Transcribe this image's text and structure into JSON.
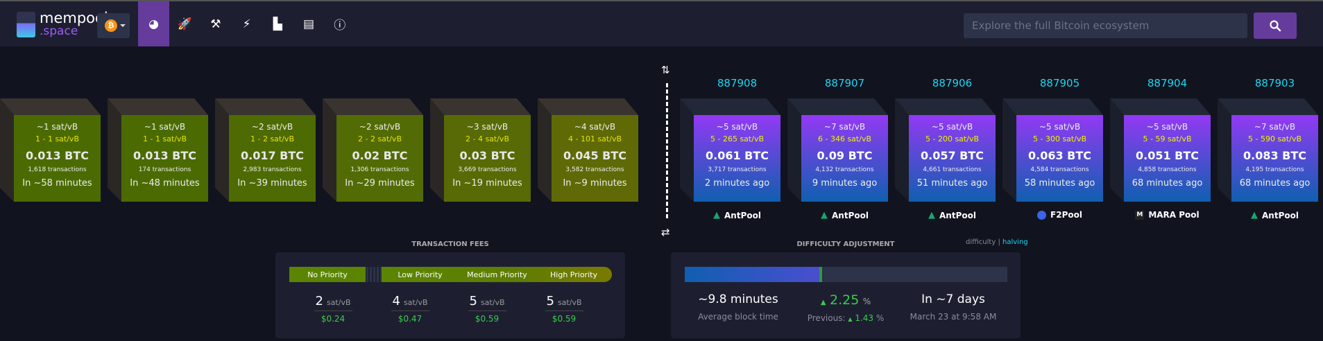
{
  "header": {
    "logo_line1": "mempool",
    "logo_line2": ".space",
    "chain_symbol": "₿",
    "search_placeholder": "Explore the full Bitcoin ecosystem",
    "nav": [
      {
        "icon": "dashboard-icon",
        "glyph": "◕",
        "active": true
      },
      {
        "icon": "rocket-icon",
        "glyph": "🚀"
      },
      {
        "icon": "hammer-icon",
        "glyph": "⚒"
      },
      {
        "icon": "lightning-icon",
        "glyph": "⚡"
      },
      {
        "icon": "chart-icon",
        "glyph": "▙"
      },
      {
        "icon": "book-icon",
        "glyph": "▤"
      },
      {
        "icon": "info-icon",
        "glyph": "ⓘ"
      }
    ]
  },
  "mempool_blocks": [
    {
      "median": "~1 sat/vB",
      "range": "1 - 1 sat/vB",
      "fees": "0.013 BTC",
      "txs": "1,618 transactions",
      "eta": "In ~58 minutes",
      "color": "#4b6b02"
    },
    {
      "median": "~1 sat/vB",
      "range": "1 - 1 sat/vB",
      "fees": "0.013 BTC",
      "txs": "174 transactions",
      "eta": "In ~48 minutes",
      "color": "#4b6b02"
    },
    {
      "median": "~2 sat/vB",
      "range": "1 - 2 sat/vB",
      "fees": "0.017 BTC",
      "txs": "2,983 transactions",
      "eta": "In ~39 minutes",
      "color": "#4e6a03"
    },
    {
      "median": "~2 sat/vB",
      "range": "2 - 2 sat/vB",
      "fees": "0.02 BTC",
      "txs": "1,306 transactions",
      "eta": "In ~29 minutes",
      "color": "#536b04"
    },
    {
      "median": "~3 sat/vB",
      "range": "2 - 4 sat/vB",
      "fees": "0.03 BTC",
      "txs": "3,669 transactions",
      "eta": "In ~19 minutes",
      "color": "#576a05"
    },
    {
      "median": "~4 sat/vB",
      "range": "4 - 101 sat/vB",
      "fees": "0.045 BTC",
      "txs": "3,582 transactions",
      "eta": "In ~9 minutes",
      "color": "#5f6a07"
    }
  ],
  "blocks": [
    {
      "height": "887908",
      "median": "~5 sat/vB",
      "range": "5 - 265 sat/vB",
      "fees": "0.061 BTC",
      "txs": "3,717 transactions",
      "age": "2 minutes ago",
      "pool": "AntPool",
      "pool_icon": "antpool"
    },
    {
      "height": "887907",
      "median": "~7 sat/vB",
      "range": "6 - 346 sat/vB",
      "fees": "0.09 BTC",
      "txs": "4,132 transactions",
      "age": "9 minutes ago",
      "pool": "AntPool",
      "pool_icon": "antpool"
    },
    {
      "height": "887906",
      "median": "~5 sat/vB",
      "range": "5 - 200 sat/vB",
      "fees": "0.057 BTC",
      "txs": "4,661 transactions",
      "age": "51 minutes ago",
      "pool": "AntPool",
      "pool_icon": "antpool"
    },
    {
      "height": "887905",
      "median": "~5 sat/vB",
      "range": "5 - 300 sat/vB",
      "fees": "0.063 BTC",
      "txs": "4,584 transactions",
      "age": "58 minutes ago",
      "pool": "F2Pool",
      "pool_icon": "f2pool"
    },
    {
      "height": "887904",
      "median": "~5 sat/vB",
      "range": "5 - 59 sat/vB",
      "fees": "0.051 BTC",
      "txs": "4,858 transactions",
      "age": "68 minutes ago",
      "pool": "MARA Pool",
      "pool_icon": "mara"
    },
    {
      "height": "887903",
      "median": "~7 sat/vB",
      "range": "5 - 590 sat/vB",
      "fees": "0.083 BTC",
      "txs": "4,195 transactions",
      "age": "68 minutes ago",
      "pool": "AntPool",
      "pool_icon": "antpool"
    }
  ],
  "fees": {
    "title": "TRANSACTION FEES",
    "labels": [
      "No Priority",
      "Low Priority",
      "Medium Priority",
      "High Priority"
    ],
    "values": [
      {
        "rate": "2",
        "unit": "sat/vB",
        "usd": "$0.24"
      },
      {
        "rate": "4",
        "unit": "sat/vB",
        "usd": "$0.47"
      },
      {
        "rate": "5",
        "unit": "sat/vB",
        "usd": "$0.59"
      },
      {
        "rate": "5",
        "unit": "sat/vB",
        "usd": "$0.59"
      }
    ]
  },
  "difficulty": {
    "title": "DIFFICULTY ADJUSTMENT",
    "toggle_difficulty": "difficulty",
    "toggle_sep": "|",
    "toggle_halving": "halving",
    "progress_percent": 42,
    "avg_time": "~9.8 minutes",
    "avg_label": "Average block time",
    "change": "2.25",
    "change_unit": "%",
    "previous_label": "Previous:",
    "previous": "1.43",
    "previous_unit": "%",
    "eta": "In ~7 days",
    "eta_date": "March 23 at 9:58 AM"
  },
  "colors": {
    "accent": "#653b9c",
    "height": "#1bd8f4",
    "positive": "#3bcc49"
  }
}
